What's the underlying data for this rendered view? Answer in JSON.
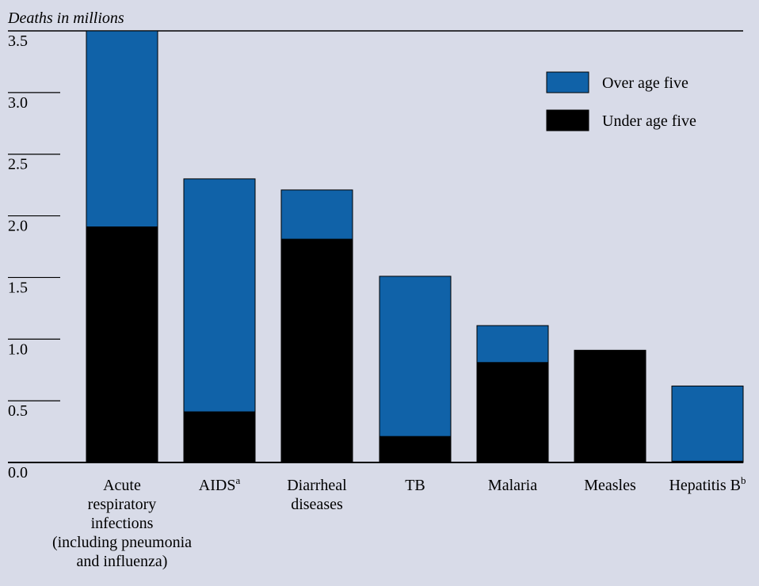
{
  "chart_data": {
    "type": "bar",
    "stacked": true,
    "ylabel": "Deaths in millions",
    "ylim": [
      0,
      3.5
    ],
    "yticks": [
      "0.0",
      "0.5",
      "1.0",
      "1.5",
      "2.0",
      "2.5",
      "3.0",
      "3.5"
    ],
    "categories": [
      {
        "lines": [
          "Acute",
          "respiratory",
          "infections",
          "(including pneumonia",
          "and influenza)"
        ],
        "sup": ""
      },
      {
        "lines": [
          "AIDS"
        ],
        "sup": "a"
      },
      {
        "lines": [
          "Diarrheal",
          "diseases"
        ],
        "sup": ""
      },
      {
        "lines": [
          "TB"
        ],
        "sup": ""
      },
      {
        "lines": [
          "Malaria"
        ],
        "sup": ""
      },
      {
        "lines": [
          "Measles"
        ],
        "sup": ""
      },
      {
        "lines": [
          "Hepatitis B"
        ],
        "sup": "b"
      }
    ],
    "series": [
      {
        "name": "Under age five",
        "color": "#000000",
        "values": [
          1.91,
          0.41,
          1.81,
          0.21,
          0.81,
          0.91,
          0.01
        ]
      },
      {
        "name": "Over age five",
        "color": "#1062a8",
        "values": [
          1.59,
          1.89,
          0.4,
          1.3,
          0.3,
          0.0,
          0.61
        ]
      }
    ],
    "legend": {
      "position": "top-right",
      "order": [
        "Over age five",
        "Under age five"
      ]
    },
    "grid": false
  }
}
